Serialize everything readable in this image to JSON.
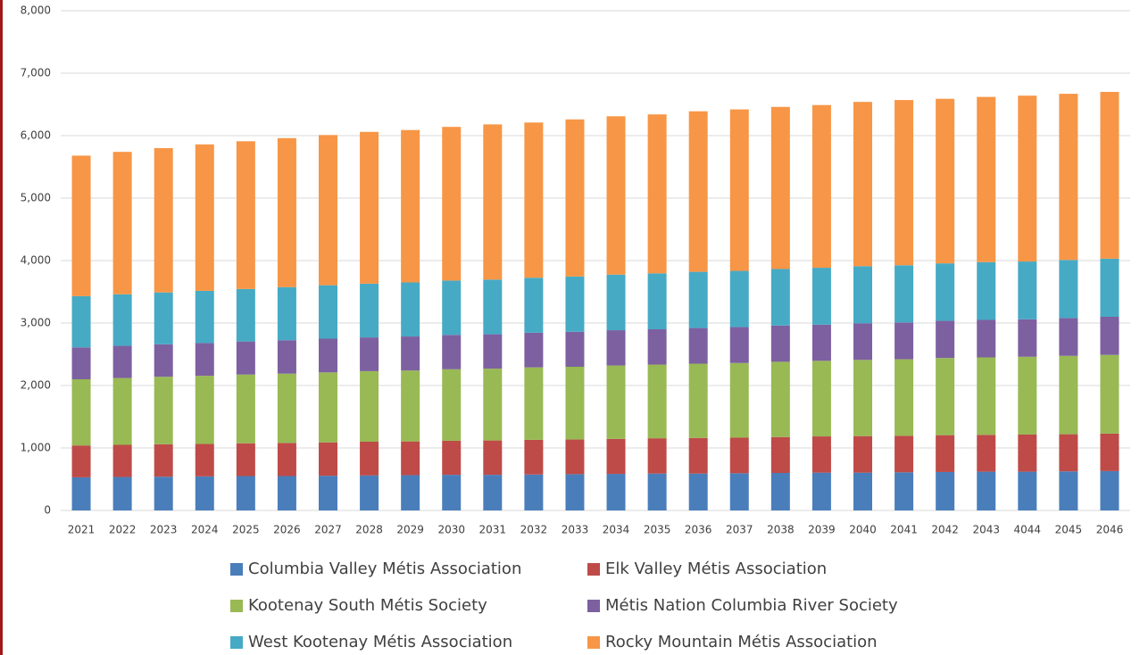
{
  "chart_data": {
    "type": "stacked_bar",
    "categories": [
      "2021",
      "2022",
      "2023",
      "2024",
      "2025",
      "2026",
      "2027",
      "2028",
      "2029",
      "2030",
      "2031",
      "2032",
      "2033",
      "2034",
      "2035",
      "2036",
      "2037",
      "2038",
      "2039",
      "2040",
      "2041",
      "2042",
      "2043",
      "4044",
      "2045",
      "2046"
    ],
    "series": [
      {
        "name": "Columbia Valley Métis Association",
        "color": "#4a7ebb",
        "values": [
          530,
          535,
          540,
          545,
          550,
          550,
          555,
          560,
          565,
          570,
          570,
          575,
          580,
          585,
          590,
          590,
          595,
          600,
          605,
          605,
          610,
          615,
          620,
          620,
          625,
          630
        ]
      },
      {
        "name": "Elk Valley Métis Association",
        "color": "#be4b48",
        "values": [
          510,
          515,
          520,
          520,
          525,
          530,
          535,
          540,
          540,
          545,
          550,
          555,
          555,
          560,
          565,
          570,
          570,
          575,
          580,
          585,
          585,
          590,
          590,
          595,
          595,
          600
        ]
      },
      {
        "name": "Kootenay South Métis Society",
        "color": "#98b954",
        "values": [
          1060,
          1070,
          1080,
          1090,
          1100,
          1110,
          1120,
          1130,
          1135,
          1145,
          1150,
          1160,
          1165,
          1175,
          1180,
          1190,
          1195,
          1205,
          1210,
          1220,
          1225,
          1235,
          1240,
          1245,
          1255,
          1260
        ]
      },
      {
        "name": "Métis Nation Columbia River Society",
        "color": "#7d60a0",
        "values": [
          510,
          515,
          520,
          525,
          530,
          535,
          540,
          540,
          545,
          550,
          550,
          555,
          560,
          565,
          565,
          570,
          575,
          580,
          580,
          585,
          590,
          595,
          600,
          600,
          605,
          610
        ]
      },
      {
        "name": "West Kootenay Métis Association",
        "color": "#46aac5",
        "values": [
          820,
          825,
          830,
          835,
          840,
          850,
          855,
          860,
          865,
          870,
          875,
          880,
          885,
          890,
          895,
          900,
          900,
          905,
          910,
          915,
          915,
          920,
          925,
          925,
          930,
          930
        ]
      },
      {
        "name": "Rocky Mountain Métis Association",
        "color": "#f79646",
        "values": [
          2250,
          2280,
          2310,
          2345,
          2365,
          2385,
          2405,
          2430,
          2440,
          2460,
          2485,
          2485,
          2515,
          2535,
          2545,
          2570,
          2585,
          2595,
          2605,
          2630,
          2645,
          2635,
          2645,
          2655,
          2660,
          2670
        ]
      }
    ],
    "ylim": [
      0,
      8000
    ],
    "yticks": [
      0,
      {
        "value": 1000,
        "label": "1,000"
      },
      {
        "value": 2000,
        "label": "2,000"
      },
      {
        "value": 3000,
        "label": "3,000"
      },
      {
        "value": 4000,
        "label": "4,000"
      },
      {
        "value": 5000,
        "label": "5,000"
      },
      {
        "value": 6000,
        "label": "6,000"
      },
      {
        "value": 7000,
        "label": "7,000"
      },
      {
        "value": 8000,
        "label": "8,000"
      }
    ],
    "grid": true,
    "legend": "bottom"
  }
}
